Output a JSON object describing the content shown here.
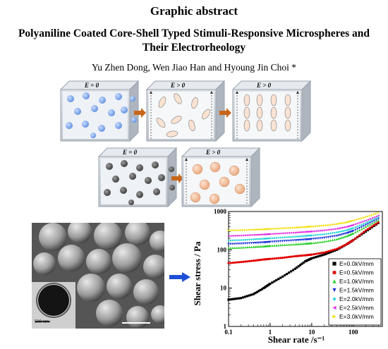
{
  "header": {
    "label": "Graphic abstract",
    "title": "Polyaniline Coated Core-Shell Typed Stimuli-Responsive Microspheres and Their Electrorheology",
    "authors": "Yu Zhen Dong, Wen Jiao Han and Hyoung Jin Choi *"
  },
  "schematic": {
    "panels_top": [
      "E = 0",
      "E > 0",
      "E > 0"
    ],
    "panels_bottom": [
      "E = 0",
      "E > 0"
    ],
    "colors": {
      "blue_particle": "#7fa8e8",
      "dark_particle": "#555555",
      "shell_particle": "#f4c8a8",
      "arrow": "#c8661a",
      "box": "#c9ced6"
    }
  },
  "micrograph": {
    "inset_scale_label": "500 nm",
    "arrow_color": "#1f4fd6"
  },
  "chart_data": {
    "type": "line",
    "xlabel": "Shear rate /s⁻¹",
    "ylabel": "Shear stress / Pa",
    "xscale": "log",
    "yscale": "log",
    "xlim": [
      0.1,
      500
    ],
    "ylim": [
      1,
      1000
    ],
    "x_ticks": [
      "0.1",
      "1",
      "10",
      "100"
    ],
    "y_ticks": [
      "1",
      "10",
      "100",
      "1000"
    ],
    "legend_position": "right",
    "series": [
      {
        "name": "E=0.0kV/mm",
        "color": "#000000",
        "marker": "square",
        "points": [
          [
            0.1,
            5
          ],
          [
            0.2,
            5.5
          ],
          [
            0.4,
            7
          ],
          [
            0.7,
            10
          ],
          [
            1,
            13
          ],
          [
            2,
            20
          ],
          [
            4,
            32
          ],
          [
            7,
            50
          ],
          [
            10,
            60
          ],
          [
            20,
            75
          ],
          [
            40,
            100
          ],
          [
            70,
            140
          ],
          [
            100,
            180
          ],
          [
            200,
            300
          ],
          [
            400,
            500
          ]
        ]
      },
      {
        "name": "E=0.5kV/mm",
        "color": "#e00000",
        "marker": "circle",
        "points": [
          [
            0.1,
            45
          ],
          [
            0.2,
            48
          ],
          [
            0.4,
            52
          ],
          [
            0.7,
            56
          ],
          [
            1,
            58
          ],
          [
            2,
            62
          ],
          [
            4,
            68
          ],
          [
            7,
            72
          ],
          [
            10,
            75
          ],
          [
            20,
            85
          ],
          [
            40,
            105
          ],
          [
            70,
            140
          ],
          [
            100,
            180
          ],
          [
            200,
            320
          ],
          [
            400,
            520
          ]
        ]
      },
      {
        "name": "E=1.0kV/mm",
        "color": "#22cc22",
        "marker": "triangle-up",
        "points": [
          [
            0.1,
            112
          ],
          [
            0.2,
            115
          ],
          [
            0.4,
            120
          ],
          [
            0.7,
            124
          ],
          [
            1,
            128
          ],
          [
            2,
            134
          ],
          [
            4,
            140
          ],
          [
            7,
            146
          ],
          [
            10,
            150
          ],
          [
            20,
            165
          ],
          [
            40,
            190
          ],
          [
            70,
            230
          ],
          [
            100,
            270
          ],
          [
            200,
            400
          ],
          [
            400,
            600
          ]
        ]
      },
      {
        "name": "E=1.5kV/mm",
        "color": "#1a2fd6",
        "marker": "triangle-down",
        "points": [
          [
            0.1,
            140
          ],
          [
            0.2,
            144
          ],
          [
            0.4,
            150
          ],
          [
            0.7,
            155
          ],
          [
            1,
            160
          ],
          [
            2,
            168
          ],
          [
            4,
            176
          ],
          [
            7,
            184
          ],
          [
            10,
            190
          ],
          [
            20,
            205
          ],
          [
            40,
            230
          ],
          [
            70,
            270
          ],
          [
            100,
            310
          ],
          [
            200,
            440
          ],
          [
            400,
            640
          ]
        ]
      },
      {
        "name": "E=2.0kV/mm",
        "color": "#2ad4d4",
        "marker": "diamond",
        "points": [
          [
            0.1,
            175
          ],
          [
            0.2,
            180
          ],
          [
            0.4,
            188
          ],
          [
            0.7,
            195
          ],
          [
            1,
            200
          ],
          [
            2,
            210
          ],
          [
            4,
            220
          ],
          [
            7,
            230
          ],
          [
            10,
            238
          ],
          [
            20,
            255
          ],
          [
            40,
            285
          ],
          [
            70,
            325
          ],
          [
            100,
            370
          ],
          [
            200,
            500
          ],
          [
            400,
            700
          ]
        ]
      },
      {
        "name": "E=2.5kV/mm",
        "color": "#e030e0",
        "marker": "triangle-left",
        "points": [
          [
            0.1,
            230
          ],
          [
            0.2,
            236
          ],
          [
            0.4,
            245
          ],
          [
            0.7,
            252
          ],
          [
            1,
            258
          ],
          [
            2,
            270
          ],
          [
            4,
            282
          ],
          [
            7,
            294
          ],
          [
            10,
            302
          ],
          [
            20,
            322
          ],
          [
            40,
            355
          ],
          [
            70,
            400
          ],
          [
            100,
            450
          ],
          [
            200,
            580
          ],
          [
            400,
            780
          ]
        ]
      },
      {
        "name": "E=3.0kV/mm",
        "color": "#f0e010",
        "marker": "triangle-right",
        "points": [
          [
            0.1,
            320
          ],
          [
            0.2,
            325
          ],
          [
            0.4,
            335
          ],
          [
            0.7,
            343
          ],
          [
            1,
            350
          ],
          [
            2,
            365
          ],
          [
            4,
            380
          ],
          [
            7,
            395
          ],
          [
            10,
            405
          ],
          [
            20,
            430
          ],
          [
            40,
            470
          ],
          [
            70,
            520
          ],
          [
            100,
            580
          ],
          [
            200,
            720
          ],
          [
            400,
            920
          ]
        ]
      }
    ]
  }
}
